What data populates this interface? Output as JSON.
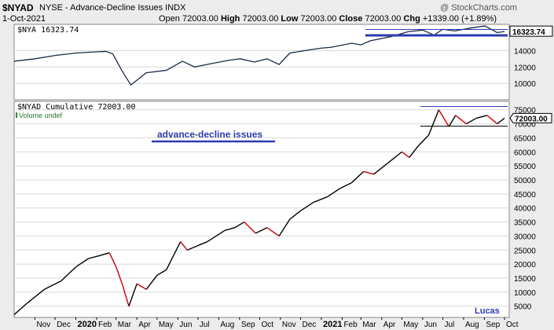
{
  "header": {
    "symbol": "$NYAD",
    "description": "NYSE - Advance-Decline Issues  INDX",
    "date": "1-Oct-2021",
    "watermark": "@ StockCharts.com",
    "open_label": "Open",
    "open": "72003.00",
    "high_label": "High",
    "high": "72003.00",
    "low_label": "Low",
    "low": "72003.00",
    "close_label": "Close",
    "close": "72003.00",
    "chg_label": "Chg",
    "chg": "+1339.00 (+1.89%)"
  },
  "colors": {
    "nya_line": "#1a2a4a",
    "nyad_up": "#000000",
    "nyad_down": "#cc0000",
    "annotation": "#2b3cb0",
    "price_box": "#000000"
  },
  "chart_data": [
    {
      "type": "line",
      "title": "$NYA 16323.74",
      "last_value_label": "16323.74",
      "y_ticks": [
        10000,
        12000,
        14000
      ],
      "ylim": [
        8000,
        17200
      ],
      "x": [
        "2019-10-01",
        "2019-11-01",
        "2019-12-01",
        "2020-01-01",
        "2020-01-20",
        "2020-02-15",
        "2020-02-25",
        "2020-03-10",
        "2020-03-23",
        "2020-04-15",
        "2020-05-15",
        "2020-06-08",
        "2020-06-26",
        "2020-07-20",
        "2020-08-15",
        "2020-09-02",
        "2020-09-23",
        "2020-10-12",
        "2020-10-30",
        "2020-11-15",
        "2020-12-15",
        "2021-01-01",
        "2021-01-15",
        "2021-02-15",
        "2021-03-01",
        "2021-03-15",
        "2021-04-15",
        "2021-05-10",
        "2021-06-01",
        "2021-06-18",
        "2021-07-01",
        "2021-07-19",
        "2021-08-15",
        "2021-09-02",
        "2021-09-20",
        "2021-10-01"
      ],
      "values": [
        12700,
        13000,
        13400,
        13700,
        13800,
        13900,
        13600,
        11500,
        9800,
        11300,
        11600,
        12700,
        12000,
        12400,
        12800,
        13000,
        12600,
        13000,
        12300,
        13700,
        14100,
        14300,
        14400,
        14900,
        14700,
        15200,
        15700,
        16300,
        16500,
        15900,
        16600,
        16400,
        16800,
        17000,
        16200,
        16324
      ]
    },
    {
      "type": "line",
      "title": "$NYAD Cumulative 72003.00",
      "legend_extra": "Volume undef",
      "last_value_label": "72003.00",
      "annotation": "advance-decline issues",
      "signature": "Lucas",
      "y_ticks": [
        5000,
        10000,
        15000,
        20000,
        25000,
        30000,
        35000,
        40000,
        45000,
        50000,
        55000,
        60000,
        65000,
        70000,
        75000
      ],
      "ylim": [
        1000,
        78000
      ],
      "x_tick_labels": [
        "Nov",
        "Dec",
        "2020",
        "Feb",
        "Mar",
        "Apr",
        "May",
        "Jun",
        "Jul",
        "Aug",
        "Sep",
        "Oct",
        "Nov",
        "Dec",
        "2021",
        "Feb",
        "Mar",
        "Apr",
        "May",
        "Jun",
        "Jul",
        "Aug",
        "Sep",
        "Oct"
      ],
      "x": [
        "2019-10-01",
        "2019-10-20",
        "2019-11-15",
        "2019-12-10",
        "2020-01-01",
        "2020-01-20",
        "2020-02-05",
        "2020-02-20",
        "2020-03-01",
        "2020-03-10",
        "2020-03-20",
        "2020-04-01",
        "2020-04-15",
        "2020-05-01",
        "2020-05-15",
        "2020-06-05",
        "2020-06-15",
        "2020-06-25",
        "2020-07-15",
        "2020-08-10",
        "2020-08-25",
        "2020-09-08",
        "2020-09-25",
        "2020-10-12",
        "2020-10-30",
        "2020-11-15",
        "2020-12-01",
        "2020-12-20",
        "2021-01-10",
        "2021-01-29",
        "2021-02-15",
        "2021-03-05",
        "2021-03-20",
        "2021-04-10",
        "2021-05-01",
        "2021-05-12",
        "2021-05-25",
        "2021-06-10",
        "2021-06-25",
        "2021-07-10",
        "2021-07-20",
        "2021-08-05",
        "2021-08-20",
        "2021-09-05",
        "2021-09-20",
        "2021-10-01"
      ],
      "values": [
        2000,
        6000,
        11000,
        14000,
        19000,
        22000,
        23000,
        24000,
        19000,
        13000,
        5000,
        13000,
        11000,
        16000,
        18000,
        28000,
        25000,
        26000,
        28000,
        32000,
        33000,
        35000,
        31000,
        33000,
        30000,
        36000,
        39000,
        42000,
        44000,
        47000,
        49000,
        53000,
        52000,
        56000,
        60000,
        58000,
        62000,
        66000,
        75000,
        69000,
        73000,
        70000,
        72000,
        73000,
        70000,
        72003
      ]
    }
  ]
}
